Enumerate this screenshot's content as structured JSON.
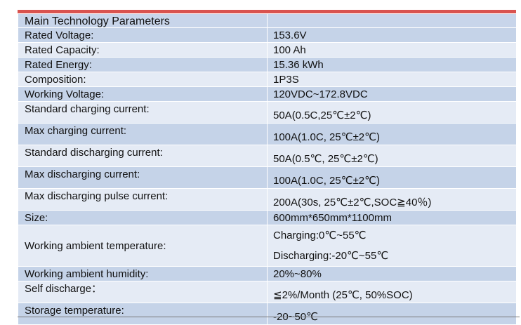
{
  "table": {
    "title": "Main Technology Parameters",
    "rows": [
      {
        "label": "Rated  Voltage:",
        "value": "153.6V"
      },
      {
        "label": "Rated  Capacity:",
        "value": "100 Ah"
      },
      {
        "label": "Rated  Energy:",
        "value": "15.36 kWh"
      },
      {
        "label": "Composition:",
        "value": "1P3S"
      },
      {
        "label": "Working Voltage:",
        "value": "120VDC~172.8VDC"
      },
      {
        "label": "Standard charging current:",
        "value": "50A(0.5C,25℃±2℃)"
      },
      {
        "label": "Max charging current:",
        "value": "100A(1.0C, 25℃±2℃)"
      },
      {
        "label": "Standard discharging current:",
        "value": "50A(0.5℃, 25℃±2℃)"
      },
      {
        "label": "Max discharging current:",
        "value": "100A(1.0C, 25℃±2℃)"
      },
      {
        "label": "Max discharging pulse current:",
        "value": "200A(30s, 25℃±2℃,SOC≧40％)"
      },
      {
        "label": "Size:",
        "value": "600mm*650mm*1100mm"
      },
      {
        "label": "Working ambient temperature:",
        "value_lines": [
          "Charging:0℃~55℃",
          "Discharging:-20℃~55℃"
        ]
      },
      {
        "label": "Working ambient humidity:",
        "value": "20%~80%"
      },
      {
        "label": "Self discharge：",
        "value": "≦2%/Month (25℃, 50%SOC)"
      },
      {
        "label": "Storage temperature:",
        "value": "-20~50℃"
      }
    ]
  }
}
